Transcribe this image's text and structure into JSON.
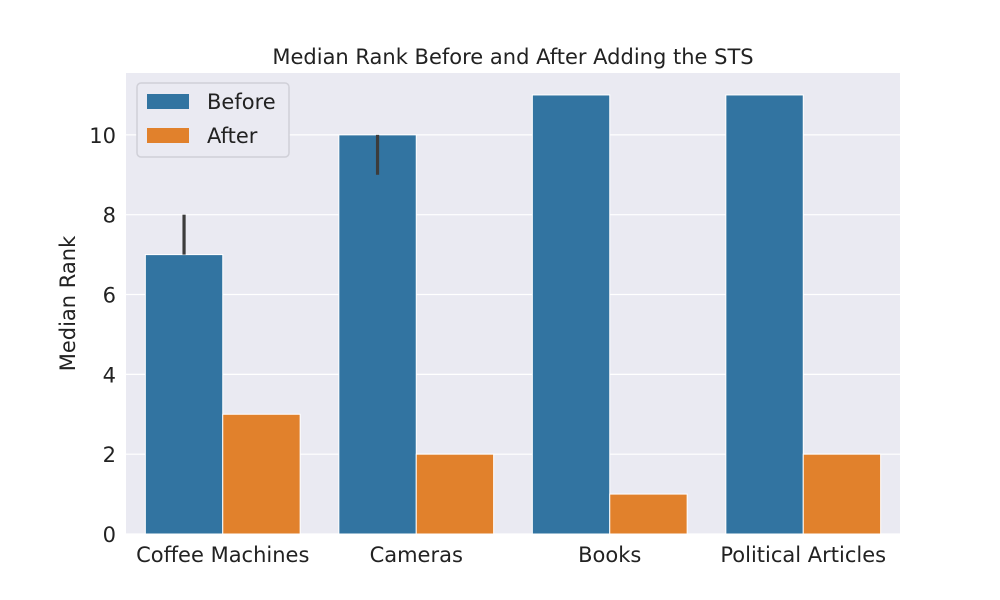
{
  "chart_data": {
    "type": "bar",
    "title": "Median Rank Before and After Adding the STS",
    "xlabel": "",
    "ylabel": "Median Rank",
    "categories": [
      "Coffee Machines",
      "Cameras",
      "Books",
      "Political Articles"
    ],
    "series": [
      {
        "name": "Before",
        "color": "#3274a1",
        "values": [
          7,
          10,
          11,
          11
        ]
      },
      {
        "name": "After",
        "color": "#e1812c",
        "values": [
          3,
          2,
          1,
          2
        ]
      }
    ],
    "error_bars": [
      {
        "series": "Before",
        "category": "Coffee Machines",
        "low": 7,
        "high": 8
      },
      {
        "series": "Before",
        "category": "Cameras",
        "low": 9,
        "high": 10
      }
    ],
    "ylim": [
      0,
      11.55
    ],
    "yticks": [
      0,
      2,
      4,
      6,
      8,
      10
    ],
    "grid": true,
    "legend_position": "top-left",
    "background_color": "#eaeaf2"
  }
}
